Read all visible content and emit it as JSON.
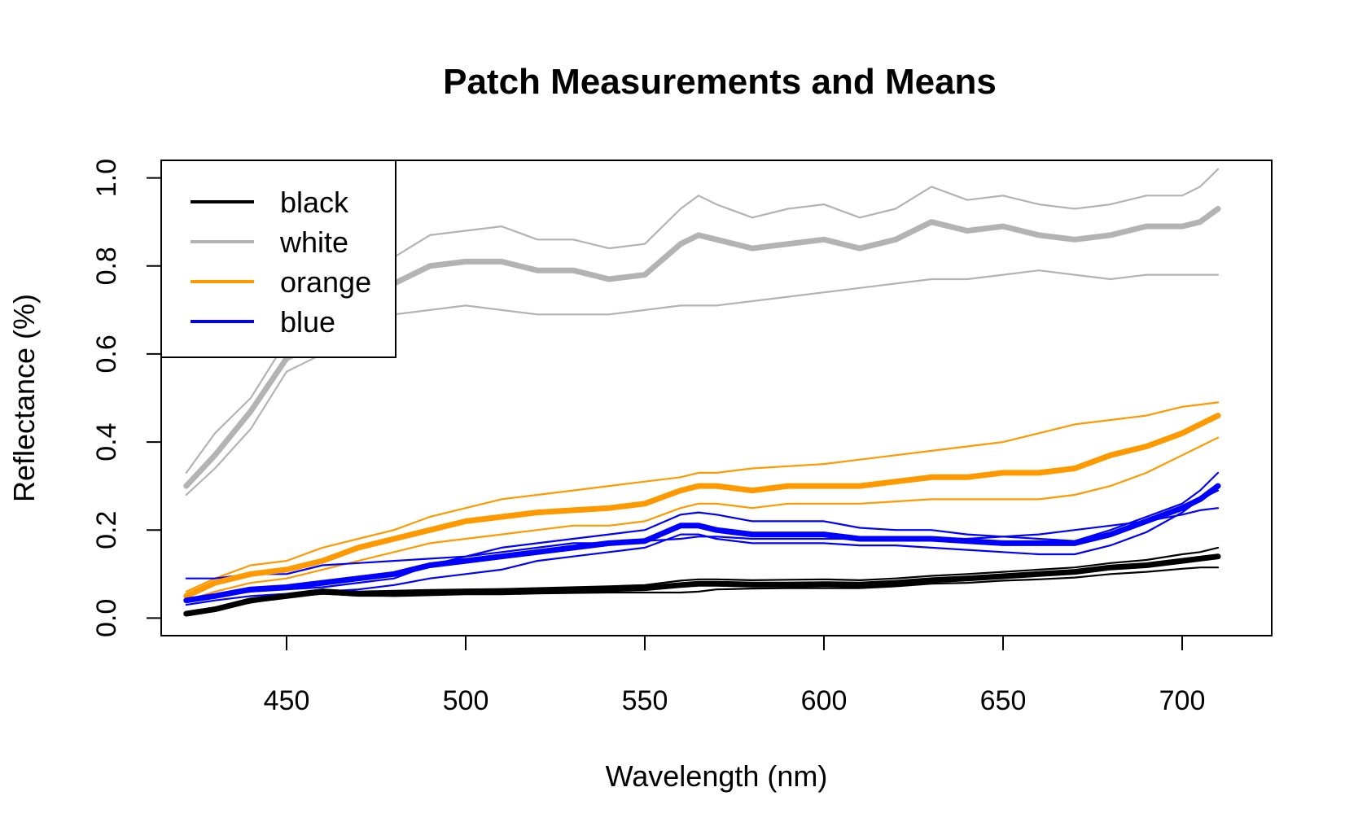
{
  "chart_data": {
    "type": "line",
    "title": "Patch Measurements and Means",
    "xlabel": "Wavelength (nm)",
    "ylabel": "Reflectance (%)",
    "xlim": [
      415,
      725
    ],
    "ylim": [
      -0.04,
      1.04
    ],
    "x_ticks": [
      450,
      500,
      550,
      600,
      650,
      700
    ],
    "x_tick_labels": [
      "450",
      "500",
      "550",
      "600",
      "650",
      "700"
    ],
    "y_ticks": [
      0.0,
      0.2,
      0.4,
      0.6,
      0.8,
      1.0
    ],
    "y_tick_labels": [
      "0.0",
      "0.2",
      "0.4",
      "0.6",
      "0.8",
      "1.0"
    ],
    "grid": false,
    "legend_position": "top-left",
    "legend": [
      {
        "label": "black",
        "color": "#000000"
      },
      {
        "label": "white",
        "color": "#b3b3b3"
      },
      {
        "label": "orange",
        "color": "#ff9900"
      },
      {
        "label": "blue",
        "color": "#0000ff"
      }
    ],
    "x": [
      422,
      430,
      440,
      450,
      460,
      470,
      480,
      490,
      500,
      510,
      520,
      530,
      540,
      550,
      560,
      565,
      570,
      580,
      590,
      600,
      610,
      620,
      630,
      640,
      650,
      660,
      670,
      680,
      690,
      700,
      705,
      710
    ],
    "series": [
      {
        "name": "black",
        "role": "mean",
        "color": "#000000",
        "values": [
          0.01,
          0.02,
          0.04,
          0.05,
          0.06,
          0.055,
          0.055,
          0.058,
          0.06,
          0.06,
          0.062,
          0.064,
          0.066,
          0.068,
          0.075,
          0.078,
          0.078,
          0.076,
          0.076,
          0.077,
          0.076,
          0.08,
          0.086,
          0.09,
          0.095,
          0.1,
          0.105,
          0.115,
          0.12,
          0.13,
          0.135,
          0.14
        ]
      },
      {
        "name": "black",
        "role": "measurement",
        "color": "#000000",
        "values": [
          0.01,
          0.02,
          0.04,
          0.055,
          0.065,
          0.06,
          0.062,
          0.064,
          0.065,
          0.066,
          0.068,
          0.07,
          0.072,
          0.075,
          0.085,
          0.088,
          0.088,
          0.086,
          0.087,
          0.088,
          0.086,
          0.09,
          0.096,
          0.1,
          0.105,
          0.11,
          0.115,
          0.125,
          0.132,
          0.145,
          0.15,
          0.16
        ]
      },
      {
        "name": "black",
        "role": "measurement",
        "color": "#000000",
        "values": [
          0.01,
          0.02,
          0.035,
          0.048,
          0.055,
          0.052,
          0.05,
          0.052,
          0.054,
          0.054,
          0.056,
          0.057,
          0.058,
          0.058,
          0.058,
          0.06,
          0.065,
          0.067,
          0.068,
          0.068,
          0.068,
          0.072,
          0.078,
          0.08,
          0.085,
          0.088,
          0.092,
          0.1,
          0.105,
          0.112,
          0.115,
          0.115
        ]
      },
      {
        "name": "white",
        "role": "mean",
        "color": "#b3b3b3",
        "values": [
          0.3,
          0.37,
          0.47,
          0.59,
          0.63,
          0.7,
          0.76,
          0.8,
          0.81,
          0.81,
          0.79,
          0.79,
          0.77,
          0.78,
          0.85,
          0.87,
          0.86,
          0.84,
          0.85,
          0.86,
          0.84,
          0.86,
          0.9,
          0.88,
          0.89,
          0.87,
          0.86,
          0.87,
          0.89,
          0.89,
          0.9,
          0.93
        ]
      },
      {
        "name": "white",
        "role": "measurement",
        "color": "#b3b3b3",
        "values": [
          0.33,
          0.42,
          0.5,
          0.63,
          0.7,
          0.79,
          0.82,
          0.87,
          0.88,
          0.89,
          0.86,
          0.86,
          0.84,
          0.85,
          0.93,
          0.96,
          0.94,
          0.91,
          0.93,
          0.94,
          0.91,
          0.93,
          0.98,
          0.95,
          0.96,
          0.94,
          0.93,
          0.94,
          0.96,
          0.96,
          0.98,
          1.02
        ]
      },
      {
        "name": "white",
        "role": "measurement",
        "color": "#b3b3b3",
        "values": [
          0.28,
          0.34,
          0.43,
          0.56,
          0.6,
          0.67,
          0.69,
          0.7,
          0.71,
          0.7,
          0.69,
          0.69,
          0.69,
          0.7,
          0.71,
          0.71,
          0.71,
          0.72,
          0.73,
          0.74,
          0.75,
          0.76,
          0.77,
          0.77,
          0.78,
          0.79,
          0.78,
          0.77,
          0.78,
          0.78,
          0.78,
          0.78
        ]
      },
      {
        "name": "orange",
        "role": "mean",
        "color": "#ff9900",
        "values": [
          0.05,
          0.08,
          0.1,
          0.11,
          0.13,
          0.16,
          0.18,
          0.2,
          0.22,
          0.23,
          0.24,
          0.245,
          0.25,
          0.26,
          0.29,
          0.3,
          0.3,
          0.29,
          0.3,
          0.3,
          0.3,
          0.31,
          0.32,
          0.32,
          0.33,
          0.33,
          0.34,
          0.37,
          0.39,
          0.42,
          0.44,
          0.46
        ]
      },
      {
        "name": "orange",
        "role": "measurement",
        "color": "#ff9900",
        "values": [
          0.06,
          0.09,
          0.12,
          0.13,
          0.16,
          0.18,
          0.2,
          0.23,
          0.25,
          0.27,
          0.28,
          0.29,
          0.3,
          0.31,
          0.32,
          0.33,
          0.33,
          0.34,
          0.345,
          0.35,
          0.36,
          0.37,
          0.38,
          0.39,
          0.4,
          0.42,
          0.44,
          0.45,
          0.46,
          0.48,
          0.485,
          0.49
        ]
      },
      {
        "name": "orange",
        "role": "measurement",
        "color": "#ff9900",
        "values": [
          0.04,
          0.06,
          0.08,
          0.09,
          0.11,
          0.13,
          0.15,
          0.17,
          0.18,
          0.19,
          0.2,
          0.21,
          0.21,
          0.22,
          0.25,
          0.26,
          0.26,
          0.25,
          0.26,
          0.26,
          0.26,
          0.265,
          0.27,
          0.27,
          0.27,
          0.27,
          0.28,
          0.3,
          0.33,
          0.37,
          0.39,
          0.41
        ]
      },
      {
        "name": "blue",
        "role": "mean",
        "color": "#0000ff",
        "values": [
          0.04,
          0.05,
          0.065,
          0.07,
          0.08,
          0.09,
          0.1,
          0.12,
          0.13,
          0.14,
          0.15,
          0.16,
          0.17,
          0.175,
          0.21,
          0.21,
          0.2,
          0.19,
          0.19,
          0.19,
          0.18,
          0.18,
          0.18,
          0.175,
          0.17,
          0.17,
          0.17,
          0.19,
          0.22,
          0.25,
          0.27,
          0.3
        ]
      },
      {
        "name": "blue",
        "role": "measurement",
        "color": "#0000ff",
        "values": [
          0.09,
          0.09,
          0.1,
          0.1,
          0.12,
          0.125,
          0.13,
          0.135,
          0.14,
          0.15,
          0.16,
          0.17,
          0.17,
          0.175,
          0.18,
          0.185,
          0.185,
          0.18,
          0.18,
          0.18,
          0.18,
          0.18,
          0.18,
          0.18,
          0.185,
          0.19,
          0.2,
          0.21,
          0.22,
          0.235,
          0.245,
          0.25
        ]
      },
      {
        "name": "blue",
        "role": "measurement",
        "color": "#0000ff",
        "values": [
          0.03,
          0.04,
          0.05,
          0.055,
          0.06,
          0.065,
          0.075,
          0.09,
          0.1,
          0.11,
          0.13,
          0.14,
          0.15,
          0.16,
          0.19,
          0.19,
          0.18,
          0.17,
          0.17,
          0.17,
          0.165,
          0.165,
          0.16,
          0.155,
          0.15,
          0.145,
          0.145,
          0.165,
          0.195,
          0.24,
          0.27,
          0.29
        ]
      },
      {
        "name": "blue",
        "role": "measurement",
        "color": "#0000ff",
        "values": [
          0.04,
          0.05,
          0.06,
          0.065,
          0.07,
          0.08,
          0.09,
          0.12,
          0.14,
          0.16,
          0.17,
          0.18,
          0.19,
          0.2,
          0.235,
          0.24,
          0.235,
          0.22,
          0.22,
          0.22,
          0.205,
          0.2,
          0.2,
          0.19,
          0.185,
          0.18,
          0.175,
          0.2,
          0.23,
          0.26,
          0.29,
          0.33
        ]
      }
    ]
  }
}
